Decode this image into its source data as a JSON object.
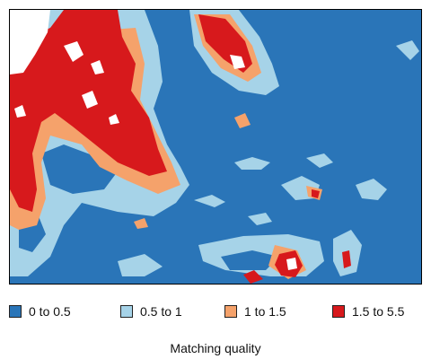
{
  "map": {
    "colors": {
      "ocean": "#2a75b8",
      "light_blue": "#a6d3e8",
      "orange": "#f5a26b",
      "red": "#d7191c",
      "land": "#ffffff"
    }
  },
  "legend": {
    "title": "Matching quality",
    "items": [
      {
        "label": "0 to 0.5",
        "color": "#2a75b8"
      },
      {
        "label": "0.5 to 1",
        "color": "#a6d3e8"
      },
      {
        "label": "1 to 1.5",
        "color": "#f5a26b"
      },
      {
        "label": "1.5 to 5.5",
        "color": "#d7191c"
      }
    ]
  }
}
